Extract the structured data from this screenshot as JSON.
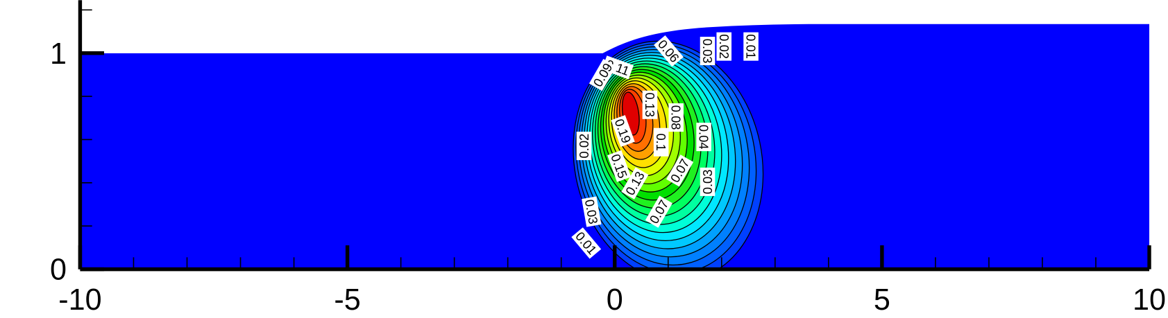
{
  "chart_data": {
    "type": "contour",
    "xlim": [
      -10,
      10
    ],
    "ylim": [
      0,
      1.2
    ],
    "xticks": [
      -10,
      -5,
      0,
      5,
      10
    ],
    "yticks": [
      0,
      1
    ],
    "xminorticks": [
      -9,
      -8,
      -7,
      -6,
      -4,
      -3,
      -2,
      -1,
      1,
      2,
      3,
      4,
      6,
      7,
      8,
      9
    ],
    "yminorticks": [
      0.2,
      0.4,
      0.6,
      0.8,
      1.2
    ],
    "levels": [
      0.01,
      0.02,
      0.03,
      0.04,
      0.05,
      0.06,
      0.07,
      0.08,
      0.09,
      0.1,
      0.11,
      0.12,
      0.13,
      0.14,
      0.15,
      0.16,
      0.17,
      0.18,
      0.19
    ],
    "colors": [
      "#0040ff",
      "#0060ff",
      "#0080ff",
      "#00a0ff",
      "#00c8ff",
      "#00e8ff",
      "#00ffd8",
      "#00ffa0",
      "#00ff60",
      "#20f020",
      "#00e000",
      "#60ff00",
      "#a0ff00",
      "#e0ff00",
      "#ffe000",
      "#ffa000",
      "#ff7000",
      "#ff4000",
      "#e00000"
    ],
    "contour_labels": [
      0.11,
      0.09,
      0.06,
      0.03,
      0.02,
      0.01,
      0.13,
      0.19,
      0.08,
      0.1,
      0.04,
      0.02,
      0.15,
      0.07,
      0.13,
      0.03,
      0.07,
      0.03,
      0.01
    ]
  }
}
